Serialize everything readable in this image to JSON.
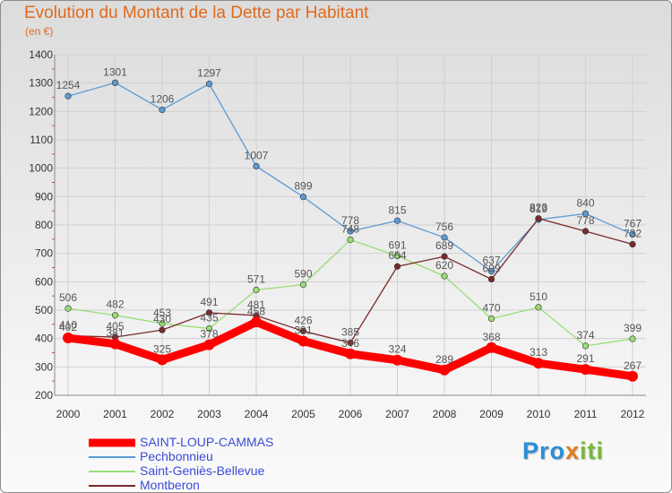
{
  "logo": {
    "text": "Proxiti"
  },
  "chart_data": {
    "type": "line",
    "title": "Evolution du Montant de la Dette par Habitant",
    "subtitle": "(en €)",
    "xlabel": "",
    "ylabel": "",
    "x": [
      "2000",
      "2001",
      "2002",
      "2003",
      "2004",
      "2005",
      "2006",
      "2007",
      "2008",
      "2009",
      "2010",
      "2011",
      "2012"
    ],
    "ylim": [
      200,
      1400
    ],
    "yticks": [
      200,
      300,
      400,
      500,
      600,
      700,
      800,
      900,
      1000,
      1100,
      1200,
      1300,
      1400
    ],
    "grid": true,
    "legend": "bottom-left",
    "series": [
      {
        "name": "SAINT-LOUP-CAMMAS",
        "color": "#ff0000",
        "values": [
          402,
          381,
          325,
          378,
          458,
          391,
          346,
          324,
          289,
          368,
          313,
          291,
          267
        ]
      },
      {
        "name": "Pechbonnieu",
        "color": "#5b9bd5",
        "values": [
          1254,
          1301,
          1206,
          1297,
          1007,
          899,
          778,
          815,
          756,
          637,
          819,
          840,
          767
        ]
      },
      {
        "name": "Saint-Geniès-Bellevue",
        "color": "#99dd77",
        "values": [
          506,
          482,
          453,
          435,
          571,
          590,
          748,
          691,
          620,
          470,
          510,
          374,
          399
        ]
      },
      {
        "name": "Montberon",
        "color": "#7a2a2a",
        "values": [
          410,
          405,
          430,
          491,
          481,
          426,
          385,
          654,
          689,
          609,
          823,
          778,
          732
        ]
      }
    ]
  }
}
